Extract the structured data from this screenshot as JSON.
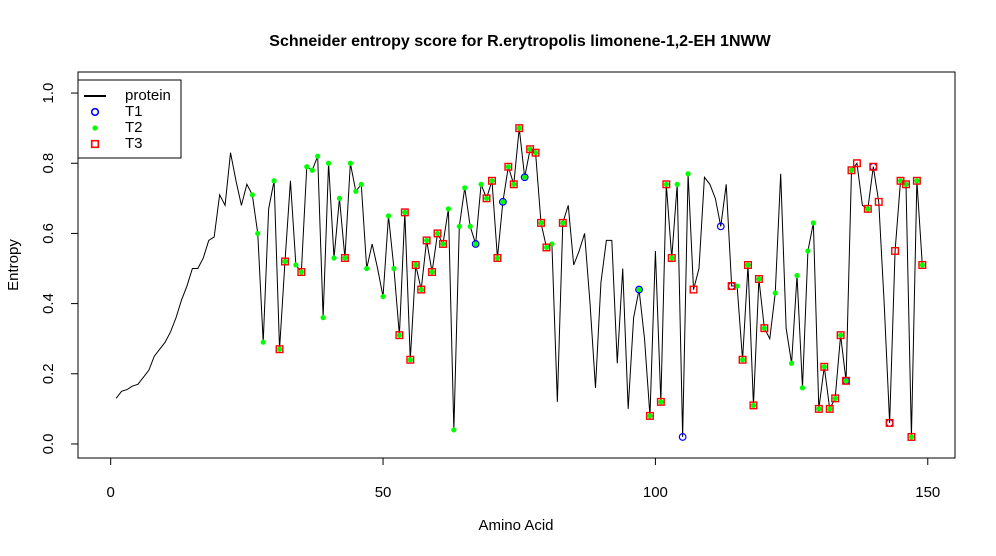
{
  "chart_data": {
    "type": "line",
    "title": "Schneider entropy score for  R.erytropolis limonene-1,2-EH 1NWW",
    "x_label": "Amino Acid",
    "y_label": "Entropy",
    "xlim": [
      -6,
      155
    ],
    "ylim": [
      -0.04,
      1.06
    ],
    "xticks": [
      0,
      50,
      100,
      150
    ],
    "yticks": [
      {
        "value": 0,
        "label": "0.0"
      },
      0.2,
      0.4,
      0.6,
      0.8,
      {
        "value": 1,
        "label": "1.0"
      }
    ],
    "legend": "top-left",
    "series": [
      {
        "name": "protein",
        "color": "#000000",
        "marker": "line",
        "x": [
          1,
          2,
          3,
          4,
          5,
          6,
          7,
          8,
          9,
          10,
          11,
          12,
          13,
          14,
          15,
          16,
          17,
          18,
          19,
          20,
          21,
          22,
          23,
          24,
          25,
          26,
          27,
          28,
          29,
          30,
          31,
          32,
          33,
          34,
          35,
          36,
          37,
          38,
          39,
          40,
          41,
          42,
          43,
          44,
          45,
          46,
          47,
          48,
          49,
          50,
          51,
          52,
          53,
          54,
          55,
          56,
          57,
          58,
          59,
          60,
          61,
          62,
          63,
          64,
          65,
          66,
          67,
          68,
          69,
          70,
          71,
          72,
          73,
          74,
          75,
          76,
          77,
          78,
          79,
          80,
          81,
          82,
          83,
          84,
          85,
          86,
          87,
          88,
          89,
          90,
          91,
          92,
          93,
          94,
          95,
          96,
          97,
          98,
          99,
          100,
          101,
          102,
          103,
          104,
          105,
          106,
          107,
          108,
          109,
          110,
          111,
          112,
          113,
          114,
          115,
          116,
          117,
          118,
          119,
          120,
          121,
          122,
          123,
          124,
          125,
          126,
          127,
          128,
          129,
          130,
          131,
          132,
          133,
          134,
          135,
          136,
          137,
          138,
          139,
          140,
          141,
          142,
          143,
          144,
          145,
          146,
          147,
          148,
          149
        ],
        "values": [
          0.13,
          0.15,
          0.155,
          0.165,
          0.17,
          0.19,
          0.21,
          0.25,
          0.27,
          0.29,
          0.32,
          0.36,
          0.41,
          0.45,
          0.5,
          0.5,
          0.53,
          0.58,
          0.59,
          0.71,
          0.68,
          0.83,
          0.75,
          0.68,
          0.74,
          0.71,
          0.6,
          0.29,
          0.67,
          0.75,
          0.27,
          0.52,
          0.75,
          0.51,
          0.49,
          0.79,
          0.78,
          0.82,
          0.36,
          0.8,
          0.53,
          0.7,
          0.53,
          0.8,
          0.72,
          0.74,
          0.5,
          0.57,
          0.5,
          0.42,
          0.65,
          0.5,
          0.31,
          0.66,
          0.24,
          0.51,
          0.44,
          0.58,
          0.49,
          0.6,
          0.57,
          0.67,
          0.04,
          0.62,
          0.73,
          0.62,
          0.57,
          0.74,
          0.7,
          0.75,
          0.53,
          0.69,
          0.79,
          0.74,
          0.9,
          0.76,
          0.84,
          0.83,
          0.63,
          0.56,
          0.57,
          0.12,
          0.63,
          0.68,
          0.51,
          0.55,
          0.6,
          0.4,
          0.16,
          0.46,
          0.58,
          0.58,
          0.23,
          0.5,
          0.1,
          0.36,
          0.44,
          0.3,
          0.08,
          0.55,
          0.12,
          0.74,
          0.53,
          0.74,
          0.02,
          0.77,
          0.44,
          0.5,
          0.76,
          0.74,
          0.7,
          0.62,
          0.74,
          0.45,
          0.45,
          0.24,
          0.51,
          0.11,
          0.47,
          0.33,
          0.3,
          0.43,
          0.77,
          0.33,
          0.23,
          0.48,
          0.16,
          0.55,
          0.63,
          0.1,
          0.22,
          0.1,
          0.13,
          0.31,
          0.18,
          0.78,
          0.8,
          0.68,
          0.67,
          0.79,
          0.69,
          0.4,
          0.06,
          0.55,
          0.75,
          0.74,
          0.02,
          0.75,
          0.51
        ]
      },
      {
        "name": "T1",
        "color": "#0000ff",
        "marker": "circle",
        "x": [
          67,
          72,
          76,
          97,
          105,
          112,
          114,
          135,
          140,
          143
        ],
        "values": [
          0.57,
          0.69,
          0.76,
          0.44,
          0.02,
          0.62,
          0.45,
          0.18,
          0.79,
          0.06
        ]
      },
      {
        "name": "T2",
        "color": "#00ff00",
        "marker": "dot",
        "x": [
          26,
          27,
          28,
          30,
          31,
          32,
          34,
          35,
          36,
          37,
          38,
          39,
          40,
          41,
          42,
          43,
          44,
          45,
          46,
          47,
          50,
          51,
          52,
          53,
          54,
          55,
          56,
          57,
          58,
          59,
          60,
          61,
          62,
          63,
          64,
          65,
          66,
          67,
          68,
          69,
          70,
          71,
          72,
          73,
          74,
          75,
          76,
          77,
          78,
          79,
          80,
          81,
          83,
          97,
          99,
          101,
          102,
          103,
          104,
          106,
          115,
          116,
          117,
          118,
          119,
          120,
          122,
          125,
          126,
          127,
          128,
          129,
          130,
          131,
          132,
          133,
          134,
          135,
          136,
          139,
          145,
          146,
          147,
          148,
          149
        ],
        "values": [
          0.71,
          0.6,
          0.29,
          0.75,
          0.27,
          0.52,
          0.51,
          0.49,
          0.79,
          0.78,
          0.82,
          0.36,
          0.8,
          0.53,
          0.7,
          0.53,
          0.8,
          0.72,
          0.74,
          0.5,
          0.42,
          0.65,
          0.5,
          0.31,
          0.66,
          0.24,
          0.51,
          0.44,
          0.58,
          0.49,
          0.6,
          0.57,
          0.67,
          0.04,
          0.62,
          0.73,
          0.62,
          0.57,
          0.74,
          0.7,
          0.75,
          0.53,
          0.69,
          0.79,
          0.74,
          0.9,
          0.76,
          0.84,
          0.83,
          0.63,
          0.56,
          0.57,
          0.63,
          0.44,
          0.08,
          0.12,
          0.74,
          0.53,
          0.74,
          0.77,
          0.45,
          0.24,
          0.51,
          0.11,
          0.47,
          0.33,
          0.43,
          0.23,
          0.48,
          0.16,
          0.55,
          0.63,
          0.1,
          0.22,
          0.1,
          0.13,
          0.31,
          0.18,
          0.78,
          0.67,
          0.75,
          0.74,
          0.02,
          0.75,
          0.51
        ]
      },
      {
        "name": "T3",
        "color": "#ff0000",
        "marker": "square",
        "x": [
          31,
          32,
          35,
          43,
          53,
          54,
          55,
          56,
          57,
          58,
          59,
          60,
          61,
          69,
          70,
          71,
          73,
          74,
          75,
          77,
          78,
          79,
          80,
          83,
          99,
          101,
          102,
          103,
          107,
          114,
          116,
          117,
          118,
          119,
          120,
          130,
          131,
          132,
          133,
          134,
          135,
          136,
          137,
          139,
          140,
          141,
          143,
          144,
          145,
          146,
          147,
          148,
          149
        ],
        "values": [
          0.27,
          0.52,
          0.49,
          0.53,
          0.31,
          0.66,
          0.24,
          0.51,
          0.44,
          0.58,
          0.49,
          0.6,
          0.57,
          0.7,
          0.75,
          0.53,
          0.79,
          0.74,
          0.9,
          0.84,
          0.83,
          0.63,
          0.56,
          0.63,
          0.08,
          0.12,
          0.74,
          0.53,
          0.44,
          0.45,
          0.24,
          0.51,
          0.11,
          0.47,
          0.33,
          0.1,
          0.22,
          0.1,
          0.13,
          0.31,
          0.18,
          0.78,
          0.8,
          0.67,
          0.79,
          0.69,
          0.06,
          0.55,
          0.75,
          0.74,
          0.02,
          0.75,
          0.51
        ]
      }
    ]
  }
}
